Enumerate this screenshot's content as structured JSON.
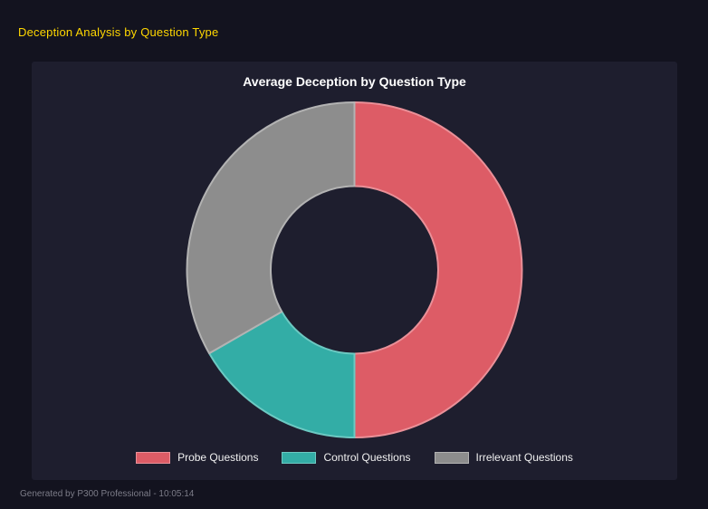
{
  "page": {
    "title": "Deception Analysis by Question Type",
    "footer": "Generated by P300 Professional - 10:05:14"
  },
  "chart_data": {
    "type": "pie",
    "subtype": "donut",
    "title": "Average Deception by Question Type",
    "labels": [
      "Probe Questions",
      "Control Questions",
      "Irrelevant Questions"
    ],
    "values": [
      50.0,
      16.7,
      33.3
    ],
    "unit": "percent-of-total (estimated from arc angles, no data labels shown)",
    "colors": [
      "#dd5c66",
      "#33ada6",
      "#8d8d8d"
    ],
    "border_colors": [
      "#ea9098",
      "#6cc9c2",
      "#b3b3b3"
    ],
    "legend_position": "bottom",
    "hole_ratio": 0.5,
    "background": "#1e1e2e"
  }
}
